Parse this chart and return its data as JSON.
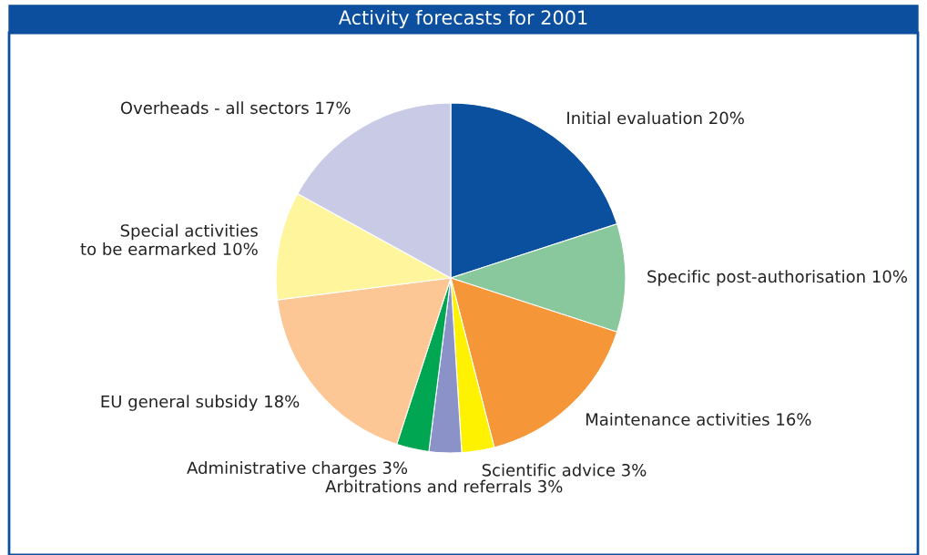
{
  "chart_data": {
    "type": "pie",
    "title": "Activity forecasts for 2001",
    "categories": [
      "Initial evaluation",
      "Specific post-authorisation",
      "Maintenance activities",
      "Scientific advice",
      "Arbitrations and referrals",
      "Administrative charges",
      "EU general subsidy",
      "Special activities\nto be earmarked",
      "Overheads - all sectors"
    ],
    "values": [
      20,
      10,
      16,
      3,
      3,
      3,
      18,
      10,
      17
    ],
    "value_labels": [
      "20%",
      "10%",
      "16%",
      "3%",
      "3%",
      "3%",
      "18%",
      "10%",
      "17%"
    ],
    "colors": [
      "#0b4f9f",
      "#88c89c",
      "#f59638",
      "#fff200",
      "#8b92c8",
      "#00a651",
      "#fdc795",
      "#fff59d",
      "#c8cae6"
    ],
    "legend": false
  }
}
